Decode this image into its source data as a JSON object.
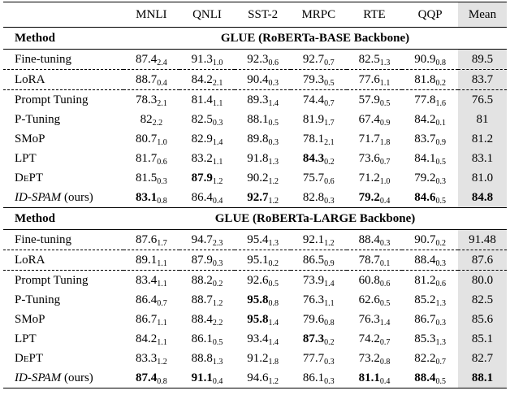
{
  "table": {
    "columns": [
      "MNLI",
      "QNLI",
      "SST-2",
      "MRPC",
      "RTE",
      "QQP",
      "Mean"
    ],
    "sections": [
      {
        "method_label": "Method",
        "title": "GLUE (RoBERTa-BASE Backbone)",
        "rows": [
          {
            "method": "Fine-tuning",
            "cells": [
              [
                "87.4",
                "2.4"
              ],
              [
                "91.3",
                "1.0"
              ],
              [
                "92.3",
                "0.6"
              ],
              [
                "92.7",
                "0.7"
              ],
              [
                "82.5",
                "1.3"
              ],
              [
                "90.9",
                "0.8"
              ]
            ],
            "mean": "89.5",
            "bold": [],
            "dashed": true
          },
          {
            "method": "LoRA",
            "cells": [
              [
                "88.7",
                "0.4"
              ],
              [
                "84.2",
                "2.1"
              ],
              [
                "90.4",
                "0.3"
              ],
              [
                "79.3",
                "0.5"
              ],
              [
                "77.6",
                "1.1"
              ],
              [
                "81.8",
                "0.2"
              ]
            ],
            "mean": "83.7",
            "bold": [],
            "dashed": true
          },
          {
            "method": "Prompt Tuning",
            "cells": [
              [
                "78.3",
                "2.1"
              ],
              [
                "81.4",
                "1.1"
              ],
              [
                "89.3",
                "1.4"
              ],
              [
                "74.4",
                "0.7"
              ],
              [
                "57.9",
                "0.5"
              ],
              [
                "77.8",
                "1.6"
              ]
            ],
            "mean": "76.5",
            "bold": []
          },
          {
            "method": "P-Tuning",
            "cells": [
              [
                "82",
                "2.2"
              ],
              [
                "82.5",
                "0.3"
              ],
              [
                "88.1",
                "0.5"
              ],
              [
                "81.9",
                "1.7"
              ],
              [
                "67.4",
                "0.9"
              ],
              [
                "84.2",
                "0.1"
              ]
            ],
            "mean": "81",
            "bold": []
          },
          {
            "method": "SMoP",
            "cells": [
              [
                "80.7",
                "1.0"
              ],
              [
                "82.9",
                "1.4"
              ],
              [
                "89.8",
                "0.3"
              ],
              [
                "78.1",
                "2.1"
              ],
              [
                "71.7",
                "1.8"
              ],
              [
                "83.7",
                "0.9"
              ]
            ],
            "mean": "81.2",
            "bold": []
          },
          {
            "method": "LPT",
            "cells": [
              [
                "81.7",
                "0.6"
              ],
              [
                "83.2",
                "1.1"
              ],
              [
                "91.8",
                "1.3"
              ],
              [
                "84.3",
                "0.2"
              ],
              [
                "73.6",
                "0.7"
              ],
              [
                "84.1",
                "0.5"
              ]
            ],
            "mean": "83.1",
            "bold": [
              3
            ]
          },
          {
            "method": "DePT",
            "smallcaps": true,
            "cells": [
              [
                "81.5",
                "0.3"
              ],
              [
                "87.9",
                "1.2"
              ],
              [
                "90.2",
                "1.2"
              ],
              [
                "75.7",
                "0.6"
              ],
              [
                "71.2",
                "1.0"
              ],
              [
                "79.2",
                "0.3"
              ]
            ],
            "mean": "81.0",
            "bold": [
              1
            ]
          },
          {
            "method": "ID-SPAM",
            "italic": true,
            "note": "(ours)",
            "cells": [
              [
                "83.1",
                "0.8"
              ],
              [
                "86.4",
                "0.4"
              ],
              [
                "92.7",
                "1.2"
              ],
              [
                "82.8",
                "0.3"
              ],
              [
                "79.2",
                "0.4"
              ],
              [
                "84.6",
                "0.5"
              ]
            ],
            "mean": "84.8",
            "bold": [
              0,
              2,
              4,
              5,
              6
            ]
          }
        ]
      },
      {
        "method_label": "Method",
        "title": "GLUE (RoBERTa-LARGE Backbone)",
        "rows": [
          {
            "method": "Fine-tuning",
            "cells": [
              [
                "87.6",
                "1.7"
              ],
              [
                "94.7",
                "2.3"
              ],
              [
                "95.4",
                "1.3"
              ],
              [
                "92.1",
                "1.2"
              ],
              [
                "88.4",
                "0.3"
              ],
              [
                "90.7",
                "0.2"
              ]
            ],
            "mean": "91.48",
            "bold": [],
            "dashed": true
          },
          {
            "method": "LoRA",
            "cells": [
              [
                "89.1",
                "1.1"
              ],
              [
                "87.9",
                "0.3"
              ],
              [
                "95.1",
                "0.2"
              ],
              [
                "86.5",
                "0.9"
              ],
              [
                "78.7",
                "0.1"
              ],
              [
                "88.4",
                "0.3"
              ]
            ],
            "mean": "87.6",
            "bold": [],
            "dashed": true
          },
          {
            "method": "Prompt Tuning",
            "cells": [
              [
                "83.4",
                "1.1"
              ],
              [
                "88.2",
                "0.2"
              ],
              [
                "92.6",
                "0.5"
              ],
              [
                "73.9",
                "1.4"
              ],
              [
                "60.8",
                "0.6"
              ],
              [
                "81.2",
                "0.6"
              ]
            ],
            "mean": "80.0",
            "bold": []
          },
          {
            "method": "P-Tuning",
            "cells": [
              [
                "86.4",
                "0.7"
              ],
              [
                "88.7",
                "1.2"
              ],
              [
                "95.8",
                "0.8"
              ],
              [
                "76.3",
                "1.1"
              ],
              [
                "62.6",
                "0.5"
              ],
              [
                "85.2",
                "1.3"
              ]
            ],
            "mean": "82.5",
            "bold": [
              2
            ]
          },
          {
            "method": "SMoP",
            "cells": [
              [
                "86.7",
                "1.1"
              ],
              [
                "88.4",
                "2.2"
              ],
              [
                "95.8",
                "1.4"
              ],
              [
                "79.6",
                "0.8"
              ],
              [
                "76.3",
                "1.4"
              ],
              [
                "86.7",
                "0.3"
              ]
            ],
            "mean": "85.6",
            "bold": [
              2
            ]
          },
          {
            "method": "LPT",
            "cells": [
              [
                "84.2",
                "1.1"
              ],
              [
                "86.1",
                "0.5"
              ],
              [
                "93.4",
                "1.4"
              ],
              [
                "87.3",
                "0.2"
              ],
              [
                "74.2",
                "0.7"
              ],
              [
                "85.3",
                "1.3"
              ]
            ],
            "mean": "85.1",
            "bold": [
              3
            ]
          },
          {
            "method": "DePT",
            "smallcaps": true,
            "cells": [
              [
                "83.3",
                "1.2"
              ],
              [
                "88.8",
                "1.3"
              ],
              [
                "91.2",
                "1.8"
              ],
              [
                "77.7",
                "0.3"
              ],
              [
                "73.2",
                "0.8"
              ],
              [
                "82.2",
                "0.7"
              ]
            ],
            "mean": "82.7",
            "bold": []
          },
          {
            "method": "ID-SPAM",
            "italic": true,
            "note": "(ours)",
            "cells": [
              [
                "87.4",
                "0.8"
              ],
              [
                "91.1",
                "0.4"
              ],
              [
                "94.6",
                "1.2"
              ],
              [
                "86.1",
                "0.3"
              ],
              [
                "81.1",
                "0.4"
              ],
              [
                "88.4",
                "0.5"
              ]
            ],
            "mean": "88.1",
            "bold": [
              0,
              1,
              4,
              5,
              6
            ]
          }
        ]
      }
    ]
  }
}
